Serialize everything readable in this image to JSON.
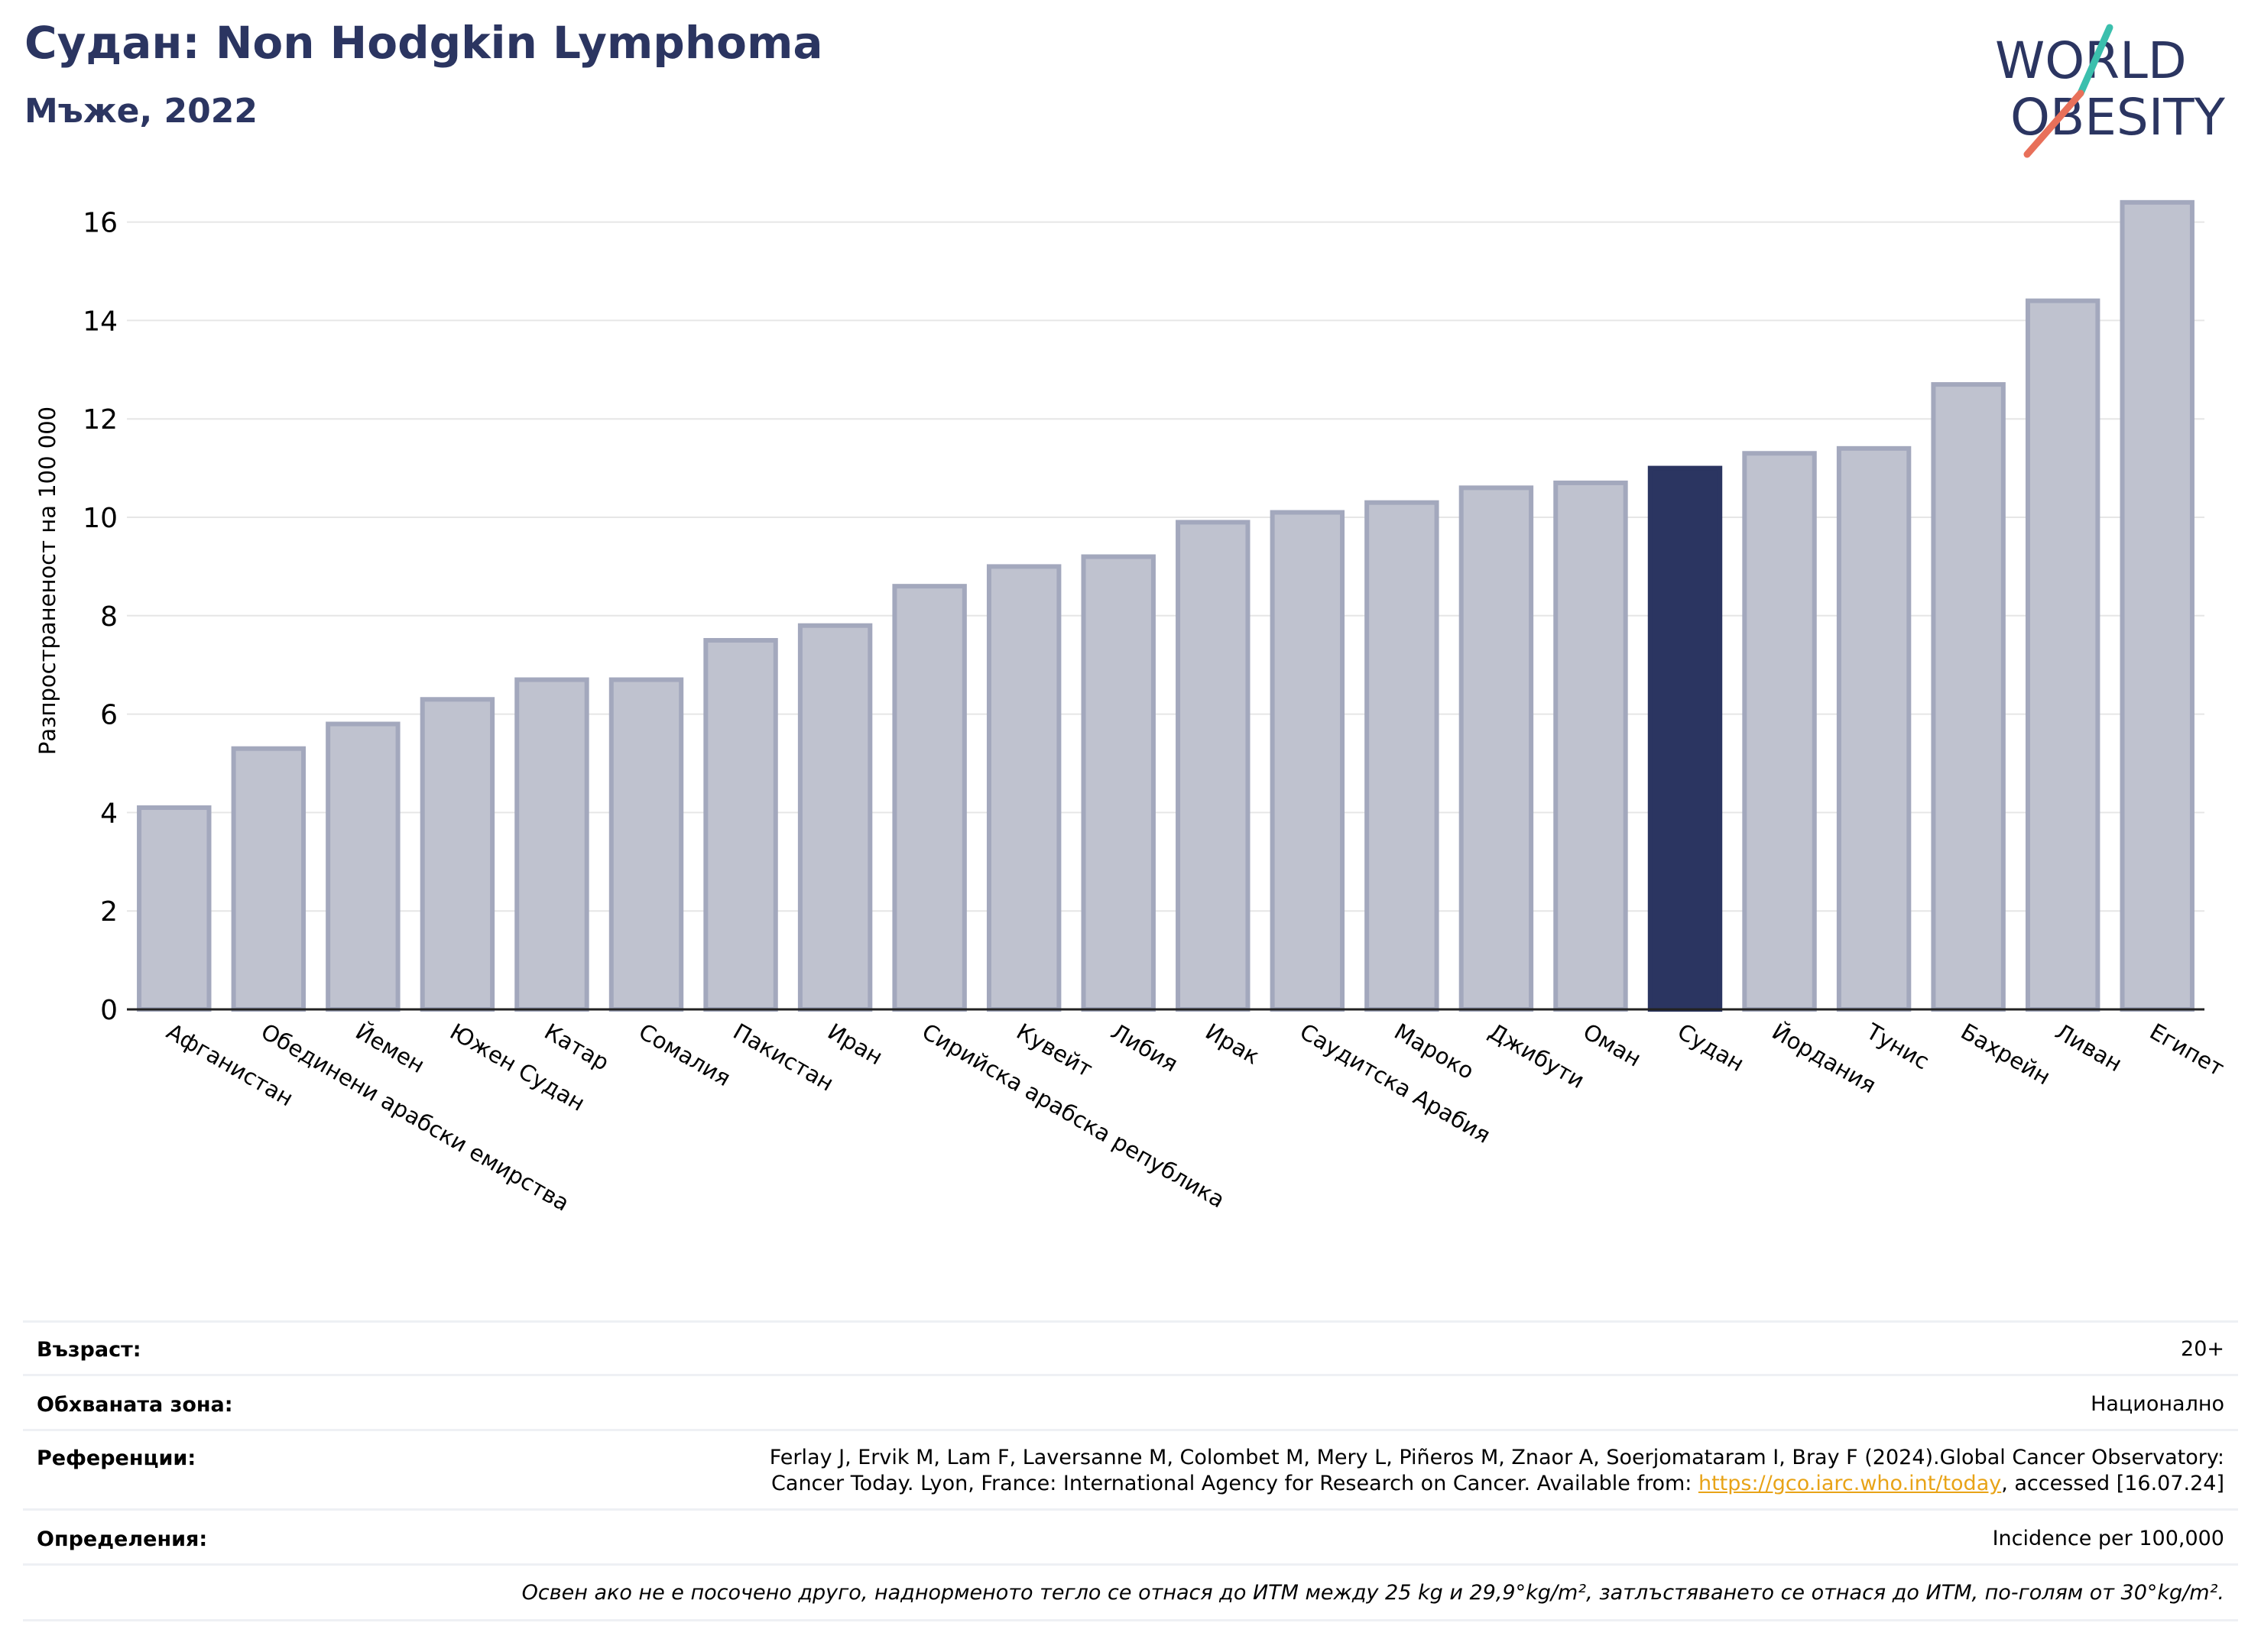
{
  "header": {
    "title": "Судан: Non Hodgkin Lymphoma",
    "subtitle": "Мъже, 2022"
  },
  "logo": {
    "line1": "WORLD",
    "line2": "OBESITY"
  },
  "colors": {
    "highlight": "#2b3561",
    "bar": "#bfc2cf",
    "bar_edge": "#a3a8bd",
    "grid": "#e6e6e6",
    "link": "#e8a317",
    "logo_teal": "#3bbfad",
    "logo_coral": "#e8705a"
  },
  "chart_data": {
    "type": "bar",
    "title": "Судан: Non Hodgkin Lymphoma",
    "subtitle": "Мъже, 2022",
    "ylabel": "Разпространеност  на 100 000",
    "xlabel": "",
    "ylim": [
      0,
      17
    ],
    "yticks": [
      0,
      2,
      4,
      6,
      8,
      10,
      12,
      14,
      16
    ],
    "grid": true,
    "highlight": "Судан",
    "categories": [
      "Афганистан",
      "Обединени арабски емирства",
      "Йемен",
      "Южен Судан",
      "Катар",
      "Сомалия",
      "Пакистан",
      "Иран",
      "Сирийска арабска република",
      "Кувейт",
      "Либия",
      "Ирак",
      "Саудитска Арабия",
      "Мароко",
      "Джибути",
      "Оман",
      "Судан",
      "Йордания",
      "Тунис",
      "Бахрейн",
      "Ливан",
      "Египет"
    ],
    "values": [
      4.1,
      5.3,
      5.8,
      6.3,
      6.7,
      6.7,
      7.5,
      7.8,
      8.6,
      9.0,
      9.2,
      9.9,
      10.1,
      10.3,
      10.6,
      10.7,
      11.0,
      11.3,
      11.4,
      12.7,
      14.4,
      16.4
    ]
  },
  "footer": {
    "age_label": "Възраст:",
    "age_value": "20+",
    "area_label": "Обхваната зона:",
    "area_value": "Национално",
    "ref_label": "Референции:",
    "ref_line1": "Ferlay J, Ervik M, Lam F, Laversanne M, Colombet M, Mery L, Piñeros M, Znaor A, Soerjomataram I, Bray F (2024).Global Cancer Observatory:",
    "ref_line2_pre": "Cancer Today. Lyon, France: International Agency for Research on Cancer. Available from: ",
    "ref_link": "https://gco.iarc.who.int/today",
    "ref_line2_post": ", accessed [16.07.24]",
    "def_label": "Определения:",
    "def_value": "Incidence per 100,000",
    "note": "Освен ако не е посочено друго, наднорменото тегло се отнася до ИТМ между 25 kg и 29,9°kg/m², затлъстяването се отнася до ИТМ, по-голям от 30°kg/m²."
  }
}
